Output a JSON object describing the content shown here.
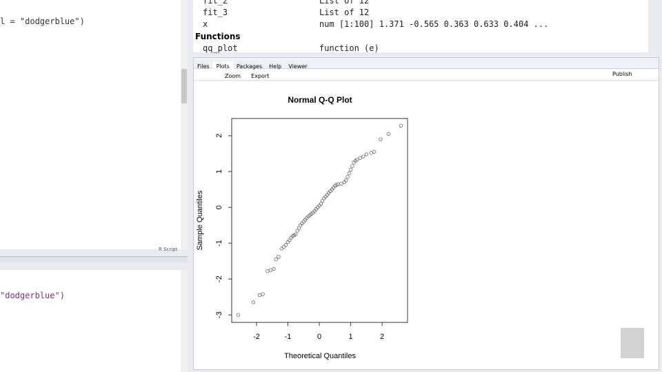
{
  "editor": {
    "line": "l = \"dodgerblue\")",
    "tab_label": "R Script"
  },
  "console": {
    "line": "\"dodgerblue\")"
  },
  "environment": {
    "rows": [
      [
        "fit_2",
        "List of 12"
      ],
      [
        "fit_3",
        "List of 12"
      ],
      [
        "x",
        "num [1:100] 1.371 -0.565 0.363 0.633 0.404 ..."
      ]
    ],
    "section": "Functions",
    "functions": [
      [
        "qq_plot",
        "function (e)"
      ]
    ]
  },
  "tabs": [
    "Files",
    "Plots",
    "Packages",
    "Help",
    "Viewer"
  ],
  "toolbar": {
    "zoom": "Zoom",
    "export": "Export",
    "publish": "Publish"
  },
  "plot": {
    "type": "scatter",
    "title": "Normal Q-Q Plot",
    "x_label": "Theoretical Quantiles",
    "y_label": "Sample Quantiles",
    "xlim": [
      -2.79,
      2.81
    ],
    "ylim": [
      -3.21,
      2.48
    ],
    "xticks": [
      -2,
      -1,
      0,
      1,
      2
    ],
    "yticks": [
      -3,
      -2,
      -1,
      0,
      1,
      2
    ],
    "color": "#666666",
    "x": [
      -2.58,
      -2.1,
      -1.9,
      -1.8,
      -1.65,
      -1.55,
      -1.45,
      -1.38,
      -1.3,
      -1.2,
      -1.13,
      -1.07,
      -1.0,
      -0.95,
      -0.9,
      -0.85,
      -0.8,
      -0.75,
      -0.7,
      -0.65,
      -0.6,
      -0.55,
      -0.5,
      -0.45,
      -0.4,
      -0.35,
      -0.3,
      -0.25,
      -0.2,
      -0.15,
      -0.1,
      -0.05,
      0.0,
      0.05,
      0.1,
      0.15,
      0.2,
      0.25,
      0.3,
      0.35,
      0.4,
      0.45,
      0.5,
      0.55,
      0.6,
      0.7,
      0.8,
      0.85,
      0.9,
      0.95,
      1.0,
      1.05,
      1.1,
      1.15,
      1.2,
      1.3,
      1.4,
      1.5,
      1.65,
      1.75,
      1.95,
      2.2,
      2.6
    ],
    "y": [
      -3.0,
      -2.65,
      -2.45,
      -2.42,
      -1.78,
      -1.75,
      -1.72,
      -1.45,
      -1.38,
      -1.15,
      -1.1,
      -1.05,
      -0.97,
      -0.92,
      -0.85,
      -0.8,
      -0.78,
      -0.75,
      -0.65,
      -0.58,
      -0.5,
      -0.45,
      -0.4,
      -0.35,
      -0.3,
      -0.25,
      -0.22,
      -0.18,
      -0.15,
      -0.1,
      -0.05,
      0.0,
      0.05,
      0.1,
      0.18,
      0.25,
      0.3,
      0.35,
      0.4,
      0.45,
      0.5,
      0.55,
      0.6,
      0.63,
      0.65,
      0.66,
      0.7,
      0.75,
      0.85,
      0.95,
      1.05,
      1.15,
      1.25,
      1.3,
      1.33,
      1.38,
      1.42,
      1.48,
      1.52,
      1.55,
      1.9,
      2.05,
      2.28
    ]
  }
}
